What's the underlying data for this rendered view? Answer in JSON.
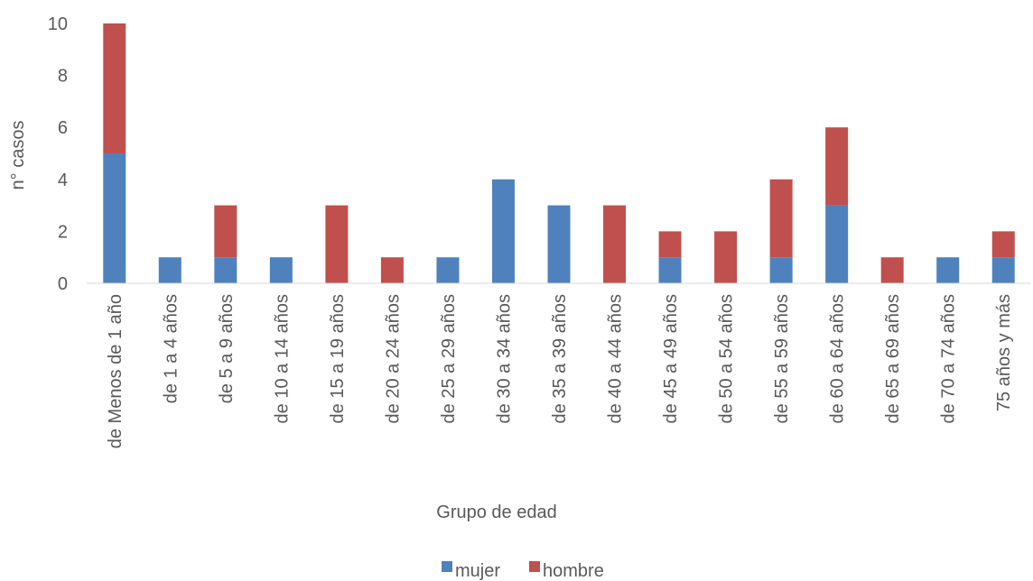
{
  "chart_data": {
    "type": "bar",
    "stacked": true,
    "title": "",
    "xlabel": "Grupo de edad",
    "ylabel": "n° casos",
    "ylim": [
      0,
      10
    ],
    "yticks": [
      0,
      2,
      4,
      6,
      8,
      10
    ],
    "grid": false,
    "legend_position": "bottom",
    "categories": [
      "de Menos de 1 año",
      "de 1 a 4 años",
      "de 5 a 9 años",
      "de 10 a 14 años",
      "de 15 a 19 años",
      "de 20 a 24 años",
      "de 25 a 29 años",
      "de 30 a 34 años",
      "de 35 a 39 años",
      "de 40 a 44 años",
      "de 45 a 49 años",
      "de 50 a 54 años",
      "de 55 a 59 años",
      "de 60 a 64 años",
      "de 65 a 69 años",
      "de 70 a 74 años",
      "75 años y más"
    ],
    "series": [
      {
        "name": "mujer",
        "color": "#4F81BD",
        "values": [
          5,
          1,
          1,
          1,
          0,
          0,
          1,
          4,
          3,
          0,
          1,
          0,
          1,
          3,
          0,
          1,
          1
        ]
      },
      {
        "name": "hombre",
        "color": "#C0504D",
        "values": [
          5,
          0,
          2,
          0,
          3,
          1,
          0,
          0,
          0,
          3,
          1,
          2,
          3,
          3,
          1,
          0,
          1
        ]
      }
    ]
  }
}
